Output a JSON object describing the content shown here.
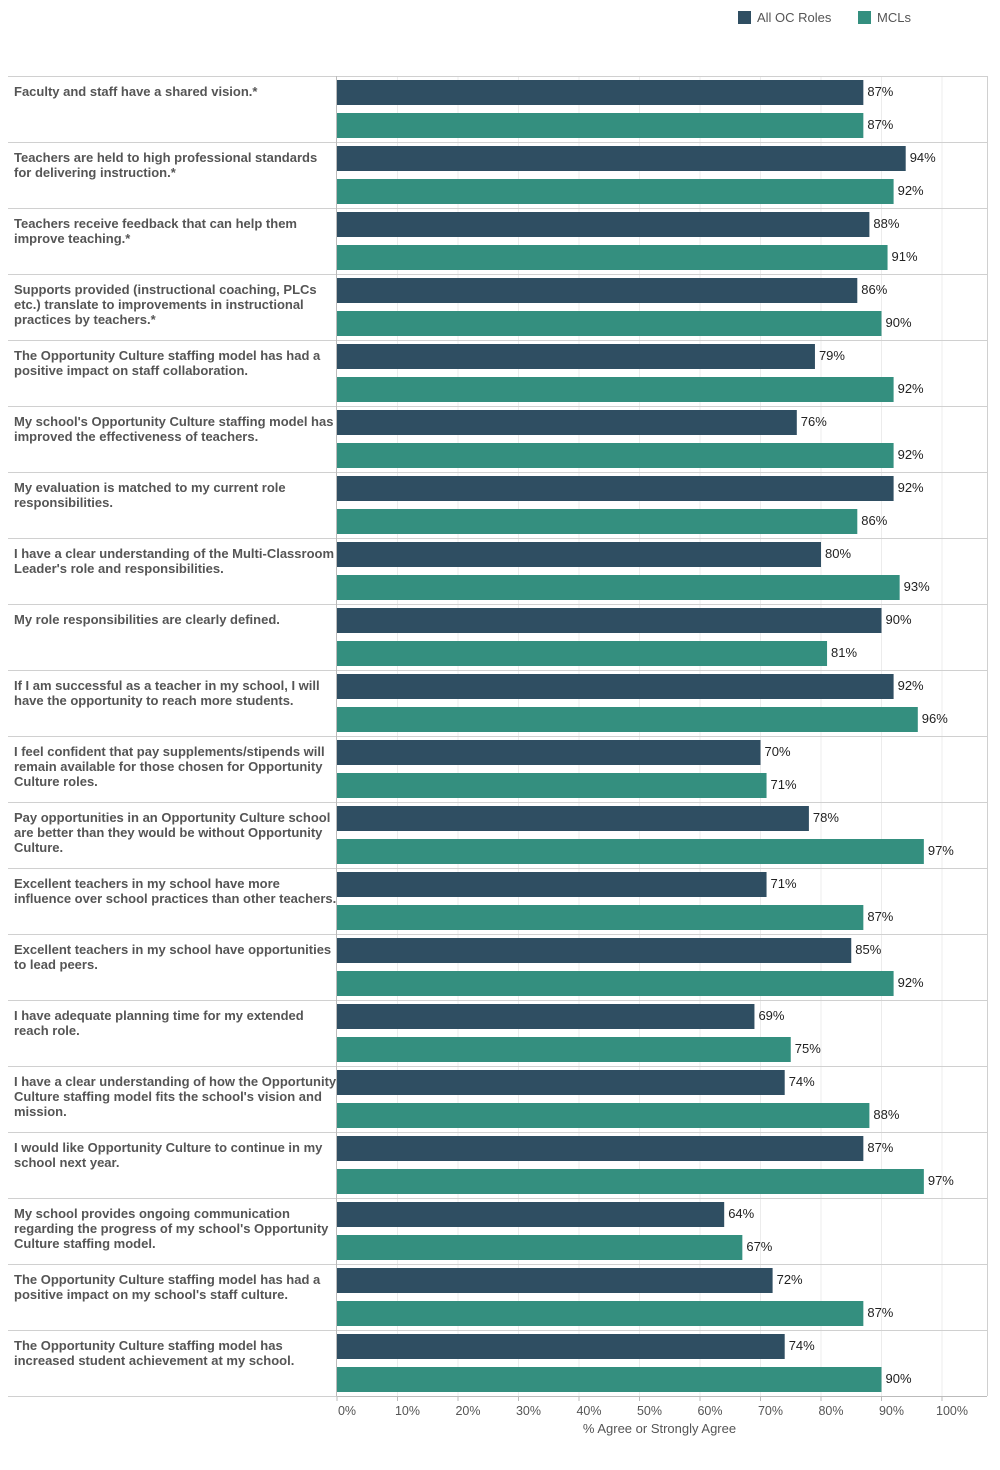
{
  "colors": {
    "all_oc_roles": "#2f4e62",
    "mcls": "#348f7f",
    "gridline": "#d0d0d0",
    "axis": "#bbbbbb"
  },
  "chart_data": {
    "type": "bar",
    "orientation": "horizontal",
    "xlabel": "% Agree or Strongly Agree",
    "xlim": [
      0,
      100
    ],
    "ticks": [
      "0%",
      "10%",
      "20%",
      "30%",
      "40%",
      "50%",
      "60%",
      "70%",
      "80%",
      "90%",
      "100%"
    ],
    "legend_position": "top-right",
    "series": [
      {
        "name": "All OC Roles",
        "color": "#2f4e62",
        "values": [
          87,
          94,
          88,
          86,
          79,
          76,
          92,
          80,
          90,
          92,
          70,
          78,
          71,
          85,
          69,
          74,
          87,
          64,
          72,
          74
        ]
      },
      {
        "name": "MCLs",
        "color": "#348f7f",
        "values": [
          87,
          92,
          91,
          90,
          92,
          92,
          86,
          93,
          81,
          96,
          71,
          97,
          87,
          92,
          75,
          88,
          97,
          67,
          87,
          90
        ]
      }
    ],
    "categories": [
      [
        "Faculty and staff have a shared vision.*"
      ],
      [
        "Teachers are held to high professional standards",
        "for delivering instruction.*"
      ],
      [
        "Teachers receive feedback that can help them",
        "improve teaching.*"
      ],
      [
        "Supports provided (instructional coaching, PLCs",
        "etc.) translate to improvements in instructional",
        "practices by teachers.*"
      ],
      [
        "The Opportunity Culture staffing model has had a",
        "positive impact on staff collaboration."
      ],
      [
        "My school's Opportunity Culture staffing model has",
        "improved the effectiveness of teachers."
      ],
      [
        "My evaluation is matched to my current role",
        "responsibilities."
      ],
      [
        "I have a clear understanding of the Multi-Classroom",
        "Leader's role and responsibilities."
      ],
      [
        "My role responsibilities are clearly defined."
      ],
      [
        "If I am successful as a teacher in my school, I will",
        "have the opportunity to reach more students."
      ],
      [
        "I feel confident that pay supplements/stipends will",
        "remain available for those chosen for Opportunity",
        "Culture roles."
      ],
      [
        "Pay opportunities in an Opportunity Culture school",
        "are better than they would be without Opportunity",
        "Culture."
      ],
      [
        "Excellent teachers in my school have more",
        "influence over school practices than other teachers."
      ],
      [
        "Excellent teachers in my school have opportunities",
        "to lead peers."
      ],
      [
        "I have adequate planning time for my extended",
        "reach role."
      ],
      [
        "I have a clear understanding of how the Opportunity",
        "Culture staffing model fits the school's vision and",
        "mission."
      ],
      [
        "I would like Opportunity Culture to continue in my",
        "school next year."
      ],
      [
        "My school provides ongoing communication",
        "regarding the progress of my school's Opportunity",
        "Culture staffing model."
      ],
      [
        "The Opportunity Culture staffing model has had a",
        "positive impact on my school's staff culture."
      ],
      [
        "The Opportunity Culture staffing model has",
        "increased student achievement at my school."
      ]
    ]
  }
}
